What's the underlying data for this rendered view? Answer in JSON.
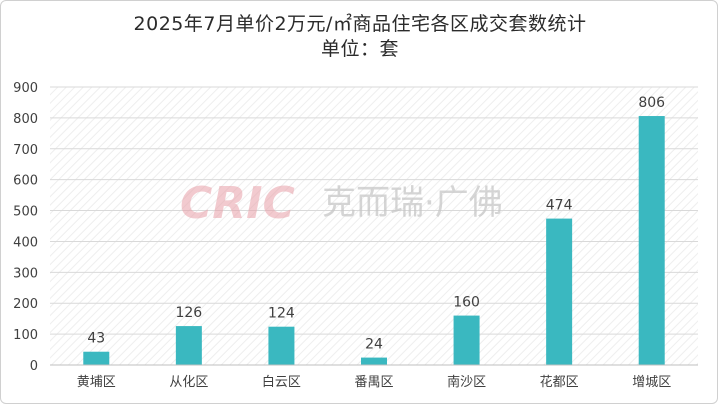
{
  "chart_data": {
    "type": "bar",
    "title": "2025年7月单价2万元/㎡商品住宅各区成交套数统计",
    "subtitle": "单位：套",
    "categories": [
      "黄埔区",
      "从化区",
      "白云区",
      "番禺区",
      "南沙区",
      "花都区",
      "增城区"
    ],
    "values": [
      43,
      126,
      124,
      24,
      160,
      474,
      806
    ],
    "yticks": [
      "0",
      "100",
      "200",
      "300",
      "400",
      "500",
      "600",
      "700",
      "800",
      "900"
    ],
    "ylim": [
      0,
      900
    ],
    "grid": true,
    "bar_color": "#3ab8c0"
  },
  "watermark": "CRIC 克而瑞·广佛"
}
